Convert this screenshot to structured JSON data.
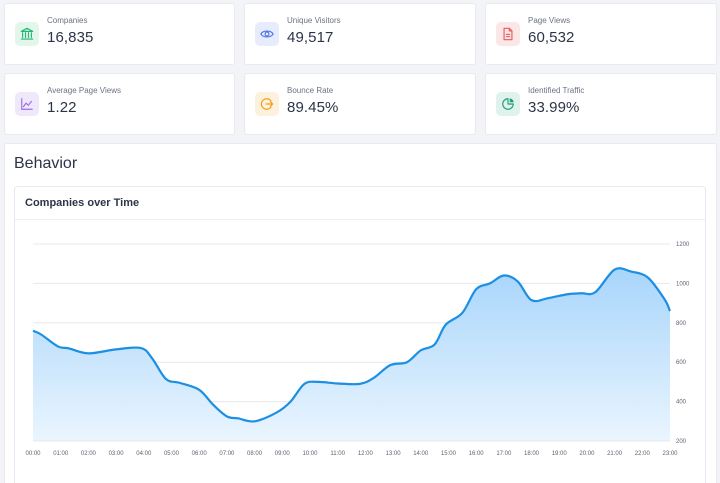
{
  "stats": [
    {
      "label": "Companies",
      "value": "16,835",
      "icon": "bank-icon",
      "color": "#22b573",
      "bg": "#e3f6ec"
    },
    {
      "label": "Unique Visitors",
      "value": "49,517",
      "icon": "eye-icon",
      "color": "#4a72e8",
      "bg": "#e6ecfc"
    },
    {
      "label": "Page Views",
      "value": "60,532",
      "icon": "document-icon",
      "color": "#e65b5b",
      "bg": "#fbe7e7"
    },
    {
      "label": "Average Page Views",
      "value": "1.22",
      "icon": "line-chart-icon",
      "color": "#9b6ce6",
      "bg": "#efe8fb"
    },
    {
      "label": "Bounce Rate",
      "value": "89.45%",
      "icon": "exit-icon",
      "color": "#f29f1f",
      "bg": "#fdf1dc"
    },
    {
      "label": "Identified Traffic",
      "value": "33.99%",
      "icon": "pie-chart-icon",
      "color": "#1f9d78",
      "bg": "#dff3ec"
    }
  ],
  "section": {
    "title": "Behavior"
  },
  "chart_panel": {
    "title": "Companies over Time"
  },
  "chart_data": {
    "type": "area",
    "title": "Companies over Time",
    "xlabel": "",
    "ylabel": "",
    "categories": [
      "00:00",
      "01:00",
      "02:00",
      "03:00",
      "04:00",
      "05:00",
      "06:00",
      "07:00",
      "08:00",
      "09:00",
      "10:00",
      "11:00",
      "12:00",
      "13:00",
      "14:00",
      "15:00",
      "16:00",
      "17:00",
      "18:00",
      "19:00",
      "20:00",
      "21:00",
      "22:00",
      "23:00"
    ],
    "y_ticks": [
      200,
      400,
      600,
      800,
      1000,
      1200
    ],
    "ylim": [
      200,
      1200
    ],
    "y_axis_position": "right",
    "grid": true,
    "legend": "none",
    "color": "#1a8fe3",
    "fill_top": "#a8d5fb",
    "fill_bottom": "#eaf5fe",
    "series": [
      {
        "x": 0.0,
        "y": 760
      },
      {
        "x": 0.3,
        "y": 740
      },
      {
        "x": 0.9,
        "y": 680
      },
      {
        "x": 1.3,
        "y": 670
      },
      {
        "x": 2.0,
        "y": 645
      },
      {
        "x": 3.0,
        "y": 665
      },
      {
        "x": 3.9,
        "y": 672
      },
      {
        "x": 4.3,
        "y": 620
      },
      {
        "x": 4.8,
        "y": 515
      },
      {
        "x": 5.3,
        "y": 495
      },
      {
        "x": 6.0,
        "y": 460
      },
      {
        "x": 6.5,
        "y": 385
      },
      {
        "x": 7.0,
        "y": 325
      },
      {
        "x": 7.4,
        "y": 315
      },
      {
        "x": 8.0,
        "y": 300
      },
      {
        "x": 8.8,
        "y": 345
      },
      {
        "x": 9.3,
        "y": 400
      },
      {
        "x": 9.8,
        "y": 490
      },
      {
        "x": 10.3,
        "y": 500
      },
      {
        "x": 11.0,
        "y": 492
      },
      {
        "x": 11.8,
        "y": 490
      },
      {
        "x": 12.3,
        "y": 520
      },
      {
        "x": 12.9,
        "y": 585
      },
      {
        "x": 13.5,
        "y": 600
      },
      {
        "x": 14.0,
        "y": 660
      },
      {
        "x": 14.5,
        "y": 690
      },
      {
        "x": 14.9,
        "y": 790
      },
      {
        "x": 15.5,
        "y": 850
      },
      {
        "x": 16.0,
        "y": 970
      },
      {
        "x": 16.5,
        "y": 1000
      },
      {
        "x": 17.0,
        "y": 1040
      },
      {
        "x": 17.5,
        "y": 1010
      },
      {
        "x": 18.0,
        "y": 915
      },
      {
        "x": 18.6,
        "y": 925
      },
      {
        "x": 19.3,
        "y": 945
      },
      {
        "x": 19.8,
        "y": 950
      },
      {
        "x": 20.3,
        "y": 955
      },
      {
        "x": 21.0,
        "y": 1070
      },
      {
        "x": 21.6,
        "y": 1060
      },
      {
        "x": 22.2,
        "y": 1030
      },
      {
        "x": 22.8,
        "y": 920
      },
      {
        "x": 23.0,
        "y": 860
      }
    ]
  }
}
